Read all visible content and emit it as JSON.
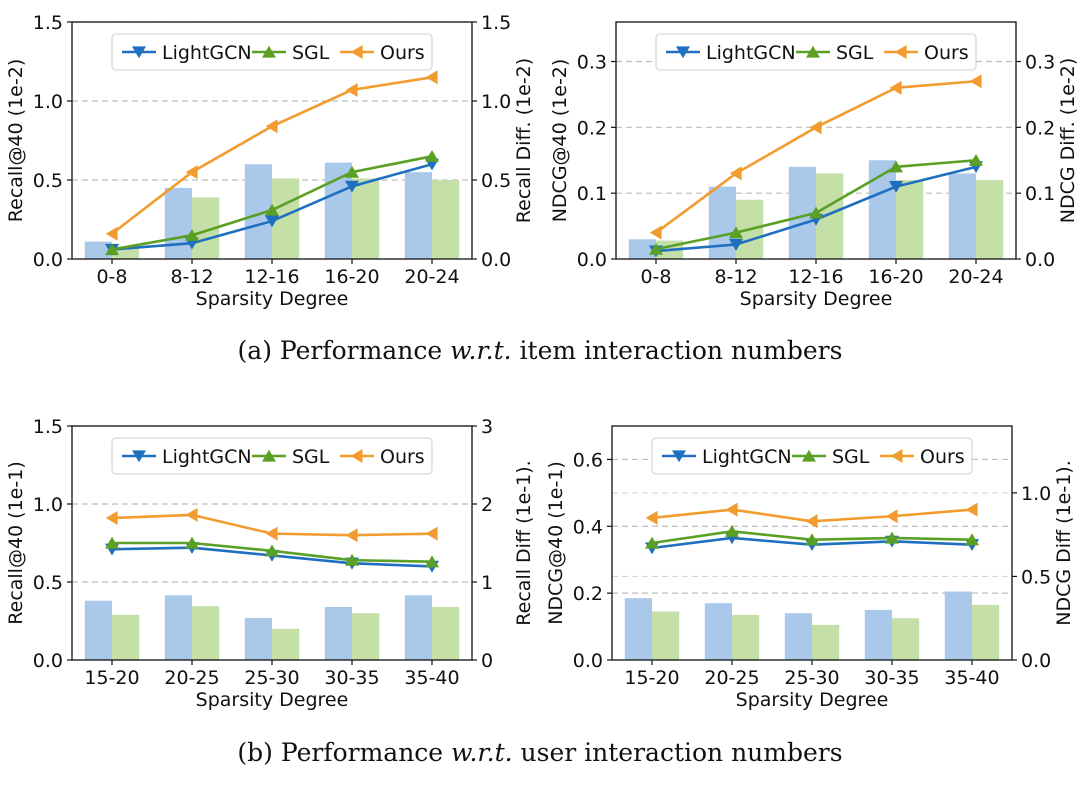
{
  "captions": {
    "a": {
      "prefix": "(a) Performance ",
      "italic": "w.r.t.",
      "suffix": " item interaction numbers"
    },
    "b": {
      "prefix": "(b) Performance ",
      "italic": "w.r.t.",
      "suffix": " user interaction numbers"
    }
  },
  "colors": {
    "lightgcn": "#1f6fc1",
    "sgl": "#5aa025",
    "ours": "#f29b2e",
    "bar_lightgcn": "#a9c8ea",
    "bar_sgl": "#c5dfa8"
  },
  "chart_data": [
    {
      "type": "bar+line",
      "xlabel": "Sparsity Degree",
      "ylabel": "Recall@40 (1e-2)",
      "y2label": "Recall Diff. (1e-2)",
      "categories": [
        "0-8",
        "8-12",
        "12-16",
        "16-20",
        "20-24"
      ],
      "ylim": [
        0,
        1.5
      ],
      "yticks": [
        "0.0",
        "0.5",
        "1.0",
        "1.5"
      ],
      "y2lim": [
        0,
        1.5
      ],
      "y2ticks": [
        "0.0",
        "0.5",
        "1.0",
        "1.5"
      ],
      "legend": "top",
      "grid": "horizontal dashed",
      "series": [
        {
          "name": "LightGCN",
          "marker": "triangle-down",
          "values": [
            0.06,
            0.1,
            0.24,
            0.46,
            0.6
          ]
        },
        {
          "name": "SGL",
          "marker": "triangle-up",
          "values": [
            0.06,
            0.15,
            0.31,
            0.55,
            0.65
          ]
        },
        {
          "name": "Ours",
          "marker": "triangle-left",
          "values": [
            0.16,
            0.55,
            0.84,
            1.07,
            1.15
          ]
        }
      ],
      "bars": [
        {
          "values": [
            0.11,
            0.45,
            0.6,
            0.61,
            0.55
          ]
        },
        {
          "values": [
            0.08,
            0.39,
            0.51,
            0.51,
            0.5
          ]
        }
      ]
    },
    {
      "type": "bar+line",
      "xlabel": "Sparsity Degree",
      "ylabel": "NDCG@40 (1e-2)",
      "y2label": "NDCG Diff. (1e-2)",
      "categories": [
        "0-8",
        "8-12",
        "12-16",
        "16-20",
        "20-24"
      ],
      "ylim": [
        0,
        0.36
      ],
      "yticks": [
        "0.0",
        "0.1",
        "0.2",
        "0.3"
      ],
      "y2lim": [
        0,
        0.36
      ],
      "y2ticks": [
        "0.0",
        "0.1",
        "0.2",
        "0.3"
      ],
      "legend": "top",
      "grid": "horizontal dashed",
      "series": [
        {
          "name": "LightGCN",
          "marker": "triangle-down",
          "values": [
            0.012,
            0.022,
            0.06,
            0.11,
            0.14
          ]
        },
        {
          "name": "SGL",
          "marker": "triangle-up",
          "values": [
            0.015,
            0.04,
            0.07,
            0.14,
            0.15
          ]
        },
        {
          "name": "Ours",
          "marker": "triangle-left",
          "values": [
            0.04,
            0.13,
            0.2,
            0.26,
            0.27
          ]
        }
      ],
      "bars": [
        {
          "values": [
            0.03,
            0.11,
            0.14,
            0.15,
            0.13
          ]
        },
        {
          "values": [
            0.028,
            0.09,
            0.13,
            0.12,
            0.12
          ]
        }
      ]
    },
    {
      "type": "bar+line",
      "xlabel": "Sparsity Degree",
      "ylabel": "Recall@40 (1e-1)",
      "y2label": "Recall Diff (1e-1).",
      "categories": [
        "15-20",
        "20-25",
        "25-30",
        "30-35",
        "35-40"
      ],
      "ylim": [
        0,
        1.5
      ],
      "yticks": [
        "0.0",
        "0.5",
        "1.0",
        "1.5"
      ],
      "y2lim": [
        0,
        3.0
      ],
      "y2ticks": [
        "0",
        "1",
        "2",
        "3"
      ],
      "legend": "top",
      "grid": "horizontal dashed",
      "series": [
        {
          "name": "LightGCN",
          "marker": "triangle-down",
          "values": [
            0.71,
            0.72,
            0.67,
            0.62,
            0.6
          ]
        },
        {
          "name": "SGL",
          "marker": "triangle-up",
          "values": [
            0.75,
            0.75,
            0.7,
            0.64,
            0.63
          ]
        },
        {
          "name": "Ours",
          "marker": "triangle-left",
          "values": [
            0.91,
            0.93,
            0.81,
            0.8,
            0.81
          ]
        }
      ],
      "bars": [
        {
          "values": [
            0.76,
            0.83,
            0.54,
            0.68,
            0.83
          ]
        },
        {
          "values": [
            0.58,
            0.69,
            0.4,
            0.6,
            0.68
          ]
        }
      ]
    },
    {
      "type": "bar+line",
      "xlabel": "Sparsity Degree",
      "ylabel": "NDCG@40 (1e-1)",
      "y2label": "NDCG Diff (1e-1).",
      "categories": [
        "15-20",
        "20-25",
        "25-30",
        "30-35",
        "35-40"
      ],
      "ylim": [
        0,
        0.7
      ],
      "yticks": [
        "0.0",
        "0.2",
        "0.4",
        "0.6"
      ],
      "y2lim": [
        0,
        1.4
      ],
      "y2ticks": [
        "0.0",
        "0.5",
        "1.0"
      ],
      "legend": "top",
      "grid": "horizontal dashed",
      "series": [
        {
          "name": "LightGCN",
          "marker": "triangle-down",
          "values": [
            0.335,
            0.365,
            0.345,
            0.355,
            0.345
          ]
        },
        {
          "name": "SGL",
          "marker": "triangle-up",
          "values": [
            0.35,
            0.385,
            0.36,
            0.365,
            0.36
          ]
        },
        {
          "name": "Ours",
          "marker": "triangle-left",
          "values": [
            0.425,
            0.45,
            0.415,
            0.43,
            0.45
          ]
        }
      ],
      "bars": [
        {
          "values": [
            0.37,
            0.34,
            0.28,
            0.3,
            0.41
          ]
        },
        {
          "values": [
            0.29,
            0.27,
            0.21,
            0.25,
            0.33
          ]
        }
      ]
    }
  ]
}
